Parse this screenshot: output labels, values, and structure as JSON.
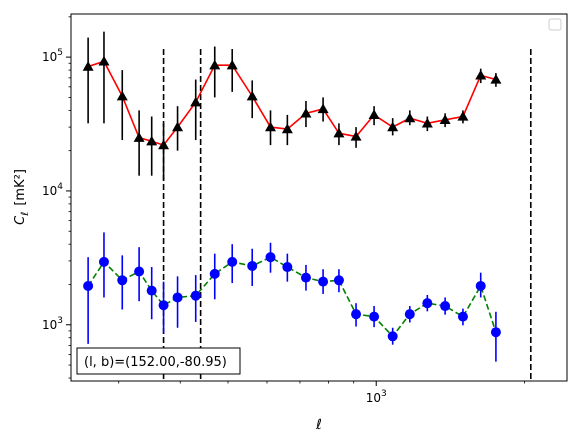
{
  "chart_data": {
    "type": "scatter",
    "xscale": "log",
    "yscale": "log",
    "xlim": [
      240,
      2440
    ],
    "ylim": [
      380,
      210000
    ],
    "xlabel": "ℓ",
    "ylabel": "C",
    "ylabel_sub": "ℓ",
    "ylabel_unit": "[mK²]",
    "x_ticks": [
      {
        "value": 1000,
        "base": "10",
        "exp": "3"
      }
    ],
    "y_ticks": [
      {
        "value": 1000,
        "base": "10",
        "exp": "3"
      },
      {
        "value": 10000,
        "base": "10",
        "exp": "4"
      },
      {
        "value": 100000,
        "base": "10",
        "exp": "5"
      }
    ],
    "vlines": [
      370,
      440,
      2060
    ],
    "annotation": "(l, b)=(152.00,-80.95)",
    "legend": "top-right",
    "legend_entries": [],
    "series": [
      {
        "color": "#ff0000",
        "linestyle": "solid",
        "marker": "triangle",
        "marker_color": "#000000",
        "errorbar_color": "#000000",
        "points": [
          {
            "x": 260,
            "y": 85000,
            "lo": 32000,
            "hi": 140000
          },
          {
            "x": 280,
            "y": 93000,
            "lo": 32000,
            "hi": 155000
          },
          {
            "x": 305,
            "y": 51000,
            "lo": 24000,
            "hi": 80000
          },
          {
            "x": 330,
            "y": 25000,
            "lo": 13000,
            "hi": 40000
          },
          {
            "x": 350,
            "y": 23500,
            "lo": 13000,
            "hi": 36000
          },
          {
            "x": 370,
            "y": 22000,
            "lo": 12000,
            "hi": 32000
          },
          {
            "x": 395,
            "y": 30000,
            "lo": 20000,
            "hi": 43000
          },
          {
            "x": 430,
            "y": 46000,
            "lo": 24000,
            "hi": 68000
          },
          {
            "x": 470,
            "y": 87000,
            "lo": 50000,
            "hi": 120000
          },
          {
            "x": 510,
            "y": 87000,
            "lo": 55000,
            "hi": 115000
          },
          {
            "x": 560,
            "y": 51000,
            "lo": 35000,
            "hi": 67000
          },
          {
            "x": 610,
            "y": 30000,
            "lo": 22000,
            "hi": 40000
          },
          {
            "x": 660,
            "y": 29000,
            "lo": 22000,
            "hi": 37000
          },
          {
            "x": 720,
            "y": 38000,
            "lo": 30000,
            "hi": 47000
          },
          {
            "x": 780,
            "y": 41000,
            "lo": 33000,
            "hi": 50000
          },
          {
            "x": 840,
            "y": 27000,
            "lo": 22000,
            "hi": 32000
          },
          {
            "x": 910,
            "y": 25500,
            "lo": 21000,
            "hi": 30000
          },
          {
            "x": 990,
            "y": 37000,
            "lo": 31000,
            "hi": 43000
          },
          {
            "x": 1080,
            "y": 30000,
            "lo": 26000,
            "hi": 35000
          },
          {
            "x": 1170,
            "y": 35000,
            "lo": 31000,
            "hi": 40000
          },
          {
            "x": 1270,
            "y": 32000,
            "lo": 28000,
            "hi": 36000
          },
          {
            "x": 1380,
            "y": 34000,
            "lo": 30000,
            "hi": 38000
          },
          {
            "x": 1500,
            "y": 36000,
            "lo": 32000,
            "hi": 40000
          },
          {
            "x": 1630,
            "y": 73000,
            "lo": 64000,
            "hi": 82000
          },
          {
            "x": 1750,
            "y": 68000,
            "lo": 60000,
            "hi": 76000
          }
        ]
      },
      {
        "color": "#008000",
        "linestyle": "dashed",
        "marker": "circle",
        "marker_color": "#0000ff",
        "errorbar_color": "#0000ff",
        "points": [
          {
            "x": 260,
            "y": 1950,
            "lo": 720,
            "hi": 3200
          },
          {
            "x": 280,
            "y": 2950,
            "lo": 1600,
            "hi": 4900
          },
          {
            "x": 305,
            "y": 2150,
            "lo": 1300,
            "hi": 3300
          },
          {
            "x": 330,
            "y": 2500,
            "lo": 1500,
            "hi": 3800
          },
          {
            "x": 350,
            "y": 1800,
            "lo": 1100,
            "hi": 2700
          },
          {
            "x": 370,
            "y": 1400,
            "lo": 860,
            "hi": 2100
          },
          {
            "x": 395,
            "y": 1600,
            "lo": 950,
            "hi": 2300
          },
          {
            "x": 430,
            "y": 1650,
            "lo": 1050,
            "hi": 2350
          },
          {
            "x": 470,
            "y": 2400,
            "lo": 1550,
            "hi": 3400
          },
          {
            "x": 510,
            "y": 2950,
            "lo": 2050,
            "hi": 4000
          },
          {
            "x": 560,
            "y": 2750,
            "lo": 1950,
            "hi": 3700
          },
          {
            "x": 610,
            "y": 3200,
            "lo": 2450,
            "hi": 4100
          },
          {
            "x": 660,
            "y": 2700,
            "lo": 2100,
            "hi": 3400
          },
          {
            "x": 720,
            "y": 2250,
            "lo": 1800,
            "hi": 2800
          },
          {
            "x": 780,
            "y": 2100,
            "lo": 1700,
            "hi": 2600
          },
          {
            "x": 840,
            "y": 2150,
            "lo": 1750,
            "hi": 2600
          },
          {
            "x": 910,
            "y": 1200,
            "lo": 970,
            "hi": 1450
          },
          {
            "x": 990,
            "y": 1150,
            "lo": 960,
            "hi": 1380
          },
          {
            "x": 1080,
            "y": 820,
            "lo": 710,
            "hi": 950
          },
          {
            "x": 1170,
            "y": 1200,
            "lo": 1040,
            "hi": 1380
          },
          {
            "x": 1270,
            "y": 1450,
            "lo": 1260,
            "hi": 1670
          },
          {
            "x": 1380,
            "y": 1380,
            "lo": 1190,
            "hi": 1600
          },
          {
            "x": 1500,
            "y": 1150,
            "lo": 990,
            "hi": 1320
          },
          {
            "x": 1630,
            "y": 1950,
            "lo": 1600,
            "hi": 2450
          },
          {
            "x": 1750,
            "y": 880,
            "lo": 530,
            "hi": 1250
          }
        ]
      }
    ]
  }
}
